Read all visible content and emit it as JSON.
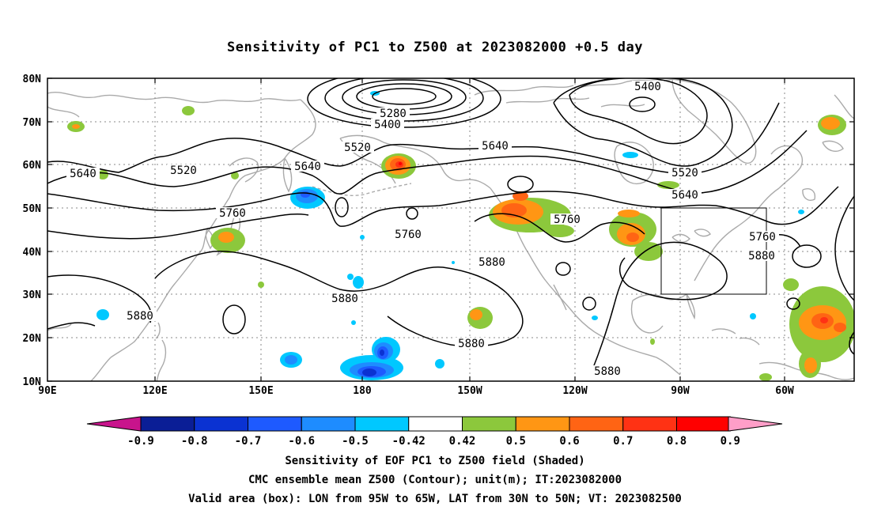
{
  "title": "Sensitivity of PC1 to Z500 at 2023082000 +0.5 day",
  "lat_labels": [
    "80N",
    "70N",
    "60N",
    "50N",
    "40N",
    "30N",
    "20N",
    "10N"
  ],
  "lon_labels": [
    "90E",
    "120E",
    "150E",
    "180",
    "150W",
    "120W",
    "90W",
    "60W"
  ],
  "colorbar": {
    "tick_labels": [
      "-0.9",
      "-0.8",
      "-0.7",
      "-0.6",
      "-0.5",
      "-0.42",
      "0.42",
      "0.5",
      "0.6",
      "0.7",
      "0.8",
      "0.9"
    ],
    "colors": [
      "#c8148c",
      "#0a1e96",
      "#0a32d2",
      "#1e5aff",
      "#1e8cff",
      "#00c8ff",
      "#ffffff",
      "#8cc83c",
      "#ff9614",
      "#ff6414",
      "#ff3214",
      "#ff0000",
      "#ff9ec8"
    ]
  },
  "contour_labels": {
    "c5400_top": "5400",
    "c5280": "5280",
    "c5400_low": "5400",
    "c5520_a": "5520",
    "c5640_a": "5640",
    "c5520_b": "5520",
    "c5640_b": "5640",
    "c5640_c": "5640",
    "c5520_c": "5520",
    "c5640_d": "5640",
    "c5760_a": "5760",
    "c5760_b": "5760",
    "c5760_c": "5760",
    "c5760_d": "5760",
    "c5880_a": "5880",
    "c5880_b": "5880",
    "c5880_c": "5880",
    "c5880_d": "5880",
    "c5880_e": "5880",
    "c5880_f": "5880"
  },
  "captions": [
    "Sensitivity of EOF PC1 to Z500 field (Shaded)",
    "CMC ensemble mean Z500 (Contour); unit(m); IT:2023082000",
    "Valid area (box): LON from 95W to 65W, LAT from 30N to 50N; VT: 2023082500"
  ]
}
